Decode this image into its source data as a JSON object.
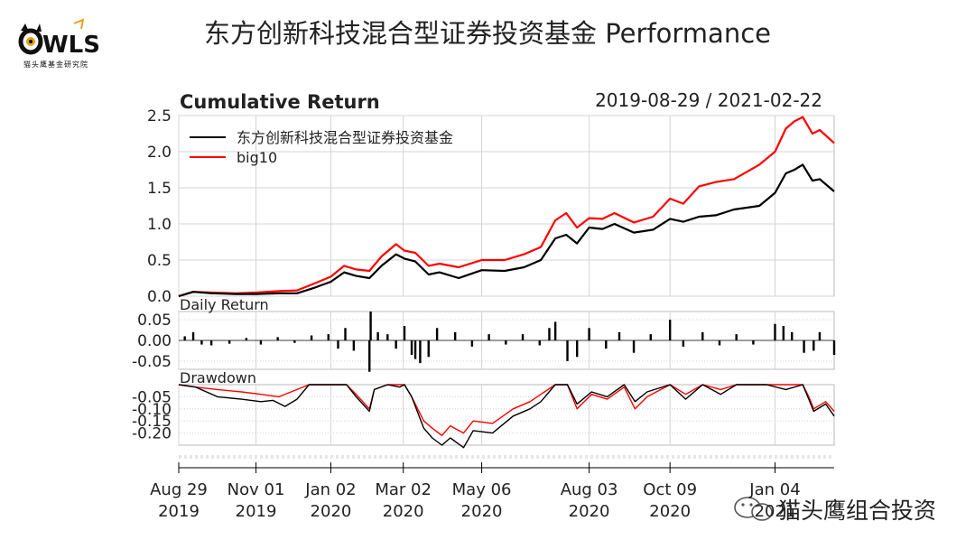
{
  "brand": {
    "logo_text": "OWLS",
    "logo_caption": "猫头鹰基金研究院",
    "watermark": "猫头鹰组合投资"
  },
  "page_title": "东方创新科技混合型证券投资基金 Performance",
  "chart_data": [
    {
      "type": "line",
      "title": "Cumulative Return",
      "date_range": "2019-08-29 / 2021-02-22",
      "x_start": "2019-08-29",
      "x_end": "2021-02-22",
      "ylim": [
        0,
        2.5
      ],
      "yticks": [
        "0.0",
        "0.5",
        "1.0",
        "1.5",
        "2.0",
        "2.5"
      ],
      "grid": true,
      "legend_position": "top-left",
      "series": [
        {
          "name": "东方创新科技混合型证券投资基金",
          "color": "#000000",
          "points": [
            [
              "2019-08-29",
              0
            ],
            [
              "2019-09-10",
              0.06
            ],
            [
              "2019-09-25",
              0.04
            ],
            [
              "2019-10-15",
              0.03
            ],
            [
              "2019-11-01",
              0.03
            ],
            [
              "2019-11-20",
              0.04
            ],
            [
              "2019-12-05",
              0.04
            ],
            [
              "2019-12-20",
              0.12
            ],
            [
              "2020-01-02",
              0.2
            ],
            [
              "2020-01-13",
              0.33
            ],
            [
              "2020-01-23",
              0.28
            ],
            [
              "2020-02-03",
              0.25
            ],
            [
              "2020-02-13",
              0.42
            ],
            [
              "2020-02-25",
              0.58
            ],
            [
              "2020-03-03",
              0.52
            ],
            [
              "2020-03-12",
              0.48
            ],
            [
              "2020-03-23",
              0.3
            ],
            [
              "2020-04-01",
              0.33
            ],
            [
              "2020-04-17",
              0.25
            ],
            [
              "2020-05-06",
              0.36
            ],
            [
              "2020-05-25",
              0.35
            ],
            [
              "2020-06-10",
              0.4
            ],
            [
              "2020-06-24",
              0.5
            ],
            [
              "2020-07-06",
              0.8
            ],
            [
              "2020-07-15",
              0.85
            ],
            [
              "2020-07-24",
              0.73
            ],
            [
              "2020-08-03",
              0.95
            ],
            [
              "2020-08-14",
              0.93
            ],
            [
              "2020-08-24",
              1.0
            ],
            [
              "2020-09-09",
              0.88
            ],
            [
              "2020-09-25",
              0.92
            ],
            [
              "2020-10-09",
              1.07
            ],
            [
              "2020-10-20",
              1.03
            ],
            [
              "2020-11-02",
              1.1
            ],
            [
              "2020-11-16",
              1.12
            ],
            [
              "2020-12-01",
              1.2
            ],
            [
              "2020-12-22",
              1.25
            ],
            [
              "2021-01-04",
              1.43
            ],
            [
              "2021-01-13",
              1.7
            ],
            [
              "2021-01-20",
              1.75
            ],
            [
              "2021-01-27",
              1.82
            ],
            [
              "2021-02-04",
              1.6
            ],
            [
              "2021-02-10",
              1.62
            ],
            [
              "2021-02-22",
              1.45
            ]
          ]
        },
        {
          "name": "big10",
          "color": "#ff0000",
          "points": [
            [
              "2019-08-29",
              0
            ],
            [
              "2019-09-10",
              0.06
            ],
            [
              "2019-09-25",
              0.05
            ],
            [
              "2019-10-15",
              0.04
            ],
            [
              "2019-11-01",
              0.05
            ],
            [
              "2019-11-20",
              0.07
            ],
            [
              "2019-12-05",
              0.08
            ],
            [
              "2019-12-20",
              0.18
            ],
            [
              "2020-01-02",
              0.27
            ],
            [
              "2020-01-13",
              0.42
            ],
            [
              "2020-01-23",
              0.37
            ],
            [
              "2020-02-03",
              0.35
            ],
            [
              "2020-02-13",
              0.55
            ],
            [
              "2020-02-25",
              0.72
            ],
            [
              "2020-03-03",
              0.63
            ],
            [
              "2020-03-12",
              0.6
            ],
            [
              "2020-03-23",
              0.42
            ],
            [
              "2020-04-01",
              0.45
            ],
            [
              "2020-04-17",
              0.4
            ],
            [
              "2020-05-06",
              0.5
            ],
            [
              "2020-05-25",
              0.5
            ],
            [
              "2020-06-10",
              0.58
            ],
            [
              "2020-06-24",
              0.68
            ],
            [
              "2020-07-06",
              1.05
            ],
            [
              "2020-07-15",
              1.15
            ],
            [
              "2020-07-24",
              0.95
            ],
            [
              "2020-08-03",
              1.08
            ],
            [
              "2020-08-14",
              1.07
            ],
            [
              "2020-08-24",
              1.15
            ],
            [
              "2020-09-09",
              1.02
            ],
            [
              "2020-09-25",
              1.1
            ],
            [
              "2020-10-09",
              1.35
            ],
            [
              "2020-10-20",
              1.28
            ],
            [
              "2020-11-02",
              1.52
            ],
            [
              "2020-11-16",
              1.58
            ],
            [
              "2020-12-01",
              1.62
            ],
            [
              "2020-12-22",
              1.82
            ],
            [
              "2021-01-04",
              2.0
            ],
            [
              "2021-01-13",
              2.32
            ],
            [
              "2021-01-20",
              2.42
            ],
            [
              "2021-01-27",
              2.48
            ],
            [
              "2021-02-04",
              2.25
            ],
            [
              "2021-02-10",
              2.3
            ],
            [
              "2021-02-22",
              2.12
            ]
          ]
        }
      ]
    },
    {
      "type": "bar",
      "title": "Daily Return",
      "ylim": [
        -0.07,
        0.07
      ],
      "yticks": [
        "0.05",
        "0.00",
        "-0.05"
      ],
      "grid": true,
      "color": "#000000",
      "points": [
        [
          "2019-09-03",
          0.01
        ],
        [
          "2019-09-10",
          0.02
        ],
        [
          "2019-09-17",
          -0.01
        ],
        [
          "2019-09-25",
          -0.012
        ],
        [
          "2019-10-10",
          -0.008
        ],
        [
          "2019-10-24",
          0.006
        ],
        [
          "2019-11-05",
          -0.01
        ],
        [
          "2019-11-19",
          0.008
        ],
        [
          "2019-12-03",
          -0.006
        ],
        [
          "2019-12-17",
          0.012
        ],
        [
          "2019-12-31",
          0.015
        ],
        [
          "2020-01-08",
          -0.02
        ],
        [
          "2020-01-14",
          0.03
        ],
        [
          "2020-01-21",
          -0.025
        ],
        [
          "2020-02-03",
          -0.076
        ],
        [
          "2020-02-04",
          0.07
        ],
        [
          "2020-02-10",
          0.02
        ],
        [
          "2020-02-18",
          0.015
        ],
        [
          "2020-02-25",
          -0.02
        ],
        [
          "2020-03-03",
          0.035
        ],
        [
          "2020-03-09",
          -0.035
        ],
        [
          "2020-03-12",
          -0.045
        ],
        [
          "2020-03-16",
          -0.055
        ],
        [
          "2020-03-23",
          -0.04
        ],
        [
          "2020-03-30",
          0.03
        ],
        [
          "2020-04-14",
          0.02
        ],
        [
          "2020-04-28",
          -0.015
        ],
        [
          "2020-05-12",
          0.015
        ],
        [
          "2020-05-26",
          -0.01
        ],
        [
          "2020-06-09",
          0.015
        ],
        [
          "2020-06-23",
          -0.012
        ],
        [
          "2020-07-01",
          0.03
        ],
        [
          "2020-07-06",
          0.045
        ],
        [
          "2020-07-16",
          -0.05
        ],
        [
          "2020-07-24",
          -0.04
        ],
        [
          "2020-08-03",
          0.03
        ],
        [
          "2020-08-17",
          -0.02
        ],
        [
          "2020-08-28",
          0.02
        ],
        [
          "2020-09-09",
          -0.03
        ],
        [
          "2020-09-23",
          0.015
        ],
        [
          "2020-10-09",
          0.05
        ],
        [
          "2020-10-20",
          -0.015
        ],
        [
          "2020-11-05",
          0.02
        ],
        [
          "2020-11-19",
          -0.012
        ],
        [
          "2020-12-03",
          0.015
        ],
        [
          "2020-12-17",
          -0.01
        ],
        [
          "2021-01-04",
          0.04
        ],
        [
          "2021-01-11",
          0.035
        ],
        [
          "2021-01-18",
          0.02
        ],
        [
          "2021-01-28",
          -0.03
        ],
        [
          "2021-02-05",
          -0.025
        ],
        [
          "2021-02-10",
          0.02
        ],
        [
          "2021-02-22",
          -0.035
        ]
      ]
    },
    {
      "type": "line",
      "title": "Drawdown",
      "ylim": [
        -0.25,
        0.0
      ],
      "yticks": [
        "-0.05",
        "-0.10",
        "-0.15",
        "-0.20"
      ],
      "grid": true,
      "series": [
        {
          "name": "东方创新科技混合型证券投资基金",
          "color": "#000000",
          "points": [
            [
              "2019-08-29",
              0
            ],
            [
              "2019-09-12",
              -0.01
            ],
            [
              "2019-09-30",
              -0.05
            ],
            [
              "2019-10-20",
              -0.06
            ],
            [
              "2019-11-05",
              -0.07
            ],
            [
              "2019-11-15",
              -0.065
            ],
            [
              "2019-11-25",
              -0.09
            ],
            [
              "2019-12-05",
              -0.06
            ],
            [
              "2019-12-15",
              0
            ],
            [
              "2020-01-15",
              0
            ],
            [
              "2020-01-23",
              -0.05
            ],
            [
              "2020-02-03",
              -0.11
            ],
            [
              "2020-02-07",
              -0.02
            ],
            [
              "2020-02-18",
              0
            ],
            [
              "2020-02-28",
              -0.01
            ],
            [
              "2020-03-03",
              0
            ],
            [
              "2020-03-09",
              -0.05
            ],
            [
              "2020-03-19",
              -0.18
            ],
            [
              "2020-03-26",
              -0.22
            ],
            [
              "2020-04-03",
              -0.25
            ],
            [
              "2020-04-10",
              -0.22
            ],
            [
              "2020-04-21",
              -0.26
            ],
            [
              "2020-04-29",
              -0.19
            ],
            [
              "2020-05-15",
              -0.2
            ],
            [
              "2020-06-01",
              -0.13
            ],
            [
              "2020-06-15",
              -0.1
            ],
            [
              "2020-06-24",
              -0.07
            ],
            [
              "2020-07-06",
              0
            ],
            [
              "2020-07-16",
              0
            ],
            [
              "2020-07-24",
              -0.08
            ],
            [
              "2020-08-05",
              -0.03
            ],
            [
              "2020-08-18",
              -0.05
            ],
            [
              "2020-09-01",
              0
            ],
            [
              "2020-09-10",
              -0.07
            ],
            [
              "2020-09-20",
              -0.03
            ],
            [
              "2020-10-09",
              0
            ],
            [
              "2020-10-22",
              -0.06
            ],
            [
              "2020-11-05",
              0
            ],
            [
              "2020-11-20",
              -0.04
            ],
            [
              "2020-12-03",
              0
            ],
            [
              "2020-12-28",
              0
            ],
            [
              "2021-01-13",
              -0.02
            ],
            [
              "2021-01-27",
              0
            ],
            [
              "2021-02-01",
              -0.06
            ],
            [
              "2021-02-05",
              -0.11
            ],
            [
              "2021-02-15",
              -0.08
            ],
            [
              "2021-02-22",
              -0.13
            ]
          ]
        },
        {
          "name": "big10",
          "color": "#ff0000",
          "points": [
            [
              "2019-08-29",
              0
            ],
            [
              "2019-09-12",
              -0.01
            ],
            [
              "2019-09-30",
              -0.02
            ],
            [
              "2019-10-20",
              -0.03
            ],
            [
              "2019-11-05",
              -0.04
            ],
            [
              "2019-11-20",
              -0.05
            ],
            [
              "2019-12-05",
              -0.02
            ],
            [
              "2019-12-15",
              0
            ],
            [
              "2020-01-15",
              0
            ],
            [
              "2020-01-23",
              -0.04
            ],
            [
              "2020-02-03",
              -0.1
            ],
            [
              "2020-02-07",
              -0.02
            ],
            [
              "2020-02-18",
              0
            ],
            [
              "2020-03-03",
              0
            ],
            [
              "2020-03-09",
              -0.05
            ],
            [
              "2020-03-19",
              -0.15
            ],
            [
              "2020-03-26",
              -0.18
            ],
            [
              "2020-04-03",
              -0.21
            ],
            [
              "2020-04-10",
              -0.17
            ],
            [
              "2020-04-21",
              -0.2
            ],
            [
              "2020-04-29",
              -0.15
            ],
            [
              "2020-05-15",
              -0.16
            ],
            [
              "2020-06-01",
              -0.1
            ],
            [
              "2020-06-15",
              -0.07
            ],
            [
              "2020-06-24",
              -0.04
            ],
            [
              "2020-07-06",
              0
            ],
            [
              "2020-07-16",
              0
            ],
            [
              "2020-07-24",
              -0.1
            ],
            [
              "2020-08-05",
              -0.04
            ],
            [
              "2020-08-18",
              -0.06
            ],
            [
              "2020-09-01",
              -0.01
            ],
            [
              "2020-09-10",
              -0.1
            ],
            [
              "2020-09-20",
              -0.05
            ],
            [
              "2020-10-09",
              0
            ],
            [
              "2020-10-22",
              -0.04
            ],
            [
              "2020-11-05",
              0
            ],
            [
              "2020-11-20",
              -0.02
            ],
            [
              "2020-12-03",
              0
            ],
            [
              "2020-12-28",
              0
            ],
            [
              "2021-01-13",
              0
            ],
            [
              "2021-01-27",
              0
            ],
            [
              "2021-02-01",
              -0.05
            ],
            [
              "2021-02-05",
              -0.1
            ],
            [
              "2021-02-15",
              -0.07
            ],
            [
              "2021-02-22",
              -0.11
            ]
          ]
        }
      ]
    }
  ],
  "x_axis": {
    "ticks": [
      {
        "date": "2019-08-29",
        "label1": "Aug 29",
        "label2": "2019"
      },
      {
        "date": "2019-11-01",
        "label1": "Nov 01",
        "label2": "2019"
      },
      {
        "date": "2020-01-02",
        "label1": "Jan 02",
        "label2": "2020"
      },
      {
        "date": "2020-03-02",
        "label1": "Mar 02",
        "label2": "2020"
      },
      {
        "date": "2020-05-06",
        "label1": "May 06",
        "label2": "2020"
      },
      {
        "date": "2020-08-03",
        "label1": "Aug 03",
        "label2": "2020"
      },
      {
        "date": "2020-10-09",
        "label1": "Oct 09",
        "label2": "2020"
      },
      {
        "date": "2021-01-04",
        "label1": "Jan 04",
        "label2": "2021"
      }
    ]
  }
}
